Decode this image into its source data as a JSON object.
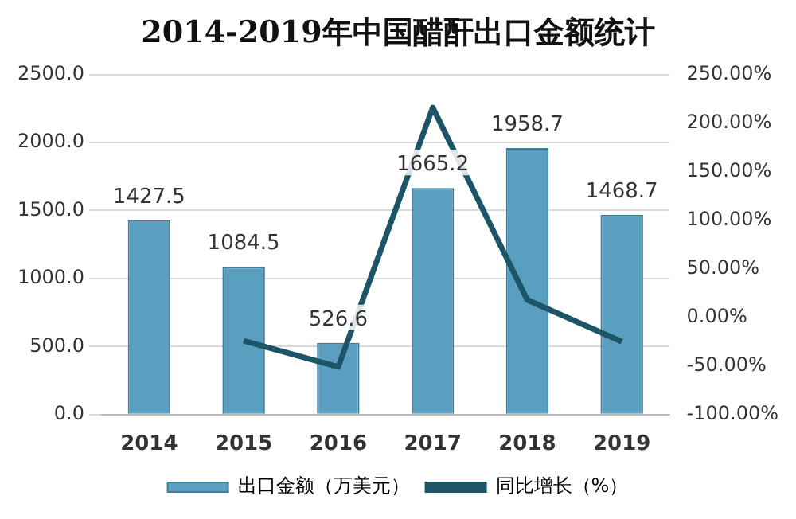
{
  "chart_data": {
    "type": "bar",
    "title": "2014-2019年中国醋酐出口金额统计",
    "categories": [
      "2014",
      "2015",
      "2016",
      "2017",
      "2018",
      "2019"
    ],
    "series": [
      {
        "name": "出口金额（万美元）",
        "color": "#5b9fc0",
        "values": [
          1427.5,
          1084.5,
          526.6,
          1665.2,
          1958.7,
          1468.7
        ],
        "value_labels": [
          "1427.5",
          "1084.5",
          "526.6",
          "1665.2",
          "1958.7",
          "1468.7"
        ]
      },
      {
        "name": "同比增长（%）",
        "type": "line",
        "axis": "y2",
        "color": "#1c5468",
        "values": [
          null,
          -24,
          -51,
          216,
          18,
          -25
        ]
      }
    ],
    "ylim": [
      0,
      2500
    ],
    "yticks": [
      {
        "value": 0,
        "label": "0.0"
      },
      {
        "value": 500,
        "label": "500.0"
      },
      {
        "value": 1000,
        "label": "1000.0"
      },
      {
        "value": 1500,
        "label": "1500.0"
      },
      {
        "value": 2000,
        "label": "2000.0"
      },
      {
        "value": 2500,
        "label": "2500.0"
      }
    ],
    "y2lim": [
      -100,
      250
    ],
    "y2ticks": [
      {
        "value": -100,
        "label": "-100.00%"
      },
      {
        "value": -50,
        "label": "-50.00%"
      },
      {
        "value": 0,
        "label": "0.00%"
      },
      {
        "value": 50,
        "label": "50.00%"
      },
      {
        "value": 100,
        "label": "100.00%"
      },
      {
        "value": 150,
        "label": "150.00%"
      },
      {
        "value": 200,
        "label": "200.00%"
      },
      {
        "value": 250,
        "label": "250.00%"
      }
    ],
    "grid": "y",
    "legend": "bottom",
    "marker": "none",
    "line_style": "solid"
  }
}
